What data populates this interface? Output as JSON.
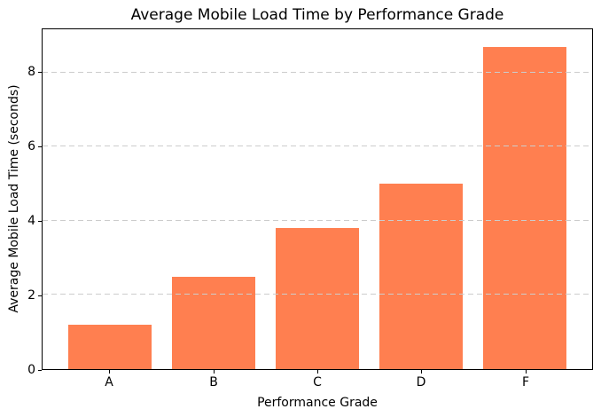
{
  "chart_data": {
    "type": "bar",
    "title": "Average Mobile Load Time by Performance Grade",
    "xlabel": "Performance Grade",
    "ylabel": "Average Mobile Load Time (seconds)",
    "categories": [
      "A",
      "B",
      "C",
      "D",
      "F"
    ],
    "values": [
      1.2,
      2.5,
      3.8,
      5.0,
      8.7
    ],
    "ylim": [
      0,
      9.17
    ],
    "yticks": [
      0,
      2,
      4,
      6,
      8
    ],
    "bar_color": "#FF7F50",
    "grid": "horizontal-dashed",
    "grid_color": "#cccccc",
    "spine_color": "#000000",
    "legend": "none"
  }
}
